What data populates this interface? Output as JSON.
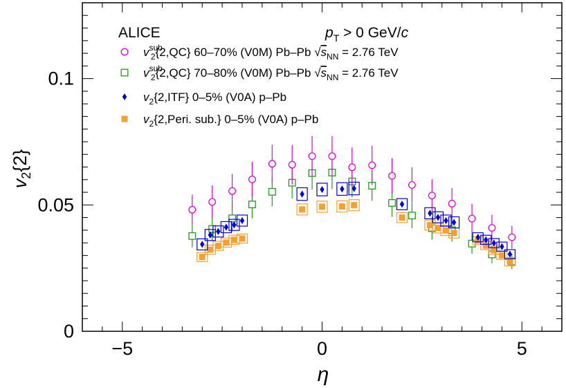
{
  "chart_data": {
    "type": "scatter",
    "title": "",
    "experiment_label": "ALICE",
    "kinematic_label": {
      "main": "p",
      "sub": "T",
      "rest": " > 0 GeV/",
      "unit": "c"
    },
    "xlabel": "η",
    "ylabel": {
      "main": "v",
      "sub": "2",
      "rest": "{2}"
    },
    "xlim": [
      -6,
      6
    ],
    "ylim": [
      0,
      0.13
    ],
    "x_ticks": [
      {
        "v": -5,
        "label": "−5"
      },
      {
        "v": 0,
        "label": "0"
      },
      {
        "v": 5,
        "label": "5"
      }
    ],
    "y_ticks": [
      {
        "v": 0,
        "label": "0"
      },
      {
        "v": 0.05,
        "label": "0.05"
      },
      {
        "v": 0.1,
        "label": "0.1"
      }
    ],
    "grid": false,
    "legend_position": "top-left",
    "series": [
      {
        "name": "v2sub{2,QC} 60–70% (V0M) Pb–Pb √sNN = 2.76 TeV",
        "legend_parts": {
          "v": "v",
          "sub": "2",
          "sup": "sub",
          "text": "{2,QC} 60–70% (V0M) Pb–Pb ",
          "sqrt_s": "s",
          "sqrt_sub": "NN",
          "energy": " = 2.76 TeV"
        },
        "marker": "open-circle",
        "color": "#e100e6",
        "x": [
          -3.25,
          -2.75,
          -2.25,
          -1.75,
          -1.25,
          -0.75,
          -0.25,
          0.25,
          0.75,
          1.25,
          1.75,
          2.25,
          2.75,
          3.25,
          3.75,
          4.25,
          4.75
        ],
        "y": [
          0.0481,
          0.0512,
          0.0555,
          0.0601,
          0.0663,
          0.0659,
          0.0693,
          0.0693,
          0.0649,
          0.0657,
          0.0615,
          0.0579,
          0.0537,
          0.0505,
          0.0446,
          0.0409,
          0.0372
        ],
        "err": [
          0.006,
          0.0065,
          0.0068,
          0.007,
          0.0075,
          0.0078,
          0.008,
          0.008,
          0.0078,
          0.0078,
          0.007,
          0.007,
          0.0065,
          0.0062,
          0.0058,
          0.0052,
          0.0045
        ]
      },
      {
        "name": "v2sub{2,QC} 70–80% (V0M) Pb–Pb √sNN = 2.76 TeV",
        "legend_parts": {
          "v": "v",
          "sub": "2",
          "sup": "sub",
          "text": "{2,QC} 70–80% (V0M) Pb–Pb ",
          "sqrt_s": "s",
          "sqrt_sub": "NN",
          "energy": " = 2.76 TeV"
        },
        "marker": "open-square",
        "color": "#1f9a1f",
        "x": [
          -3.25,
          -2.75,
          -2.25,
          -1.75,
          -1.25,
          -0.75,
          -0.25,
          0.25,
          0.75,
          1.25,
          1.75,
          2.25,
          2.75,
          3.25,
          3.75,
          4.25,
          4.75
        ],
        "y": [
          0.0377,
          0.0405,
          0.0447,
          0.0502,
          0.0552,
          0.0588,
          0.0626,
          0.0628,
          0.0593,
          0.0576,
          0.0508,
          0.0458,
          0.0408,
          0.04,
          0.0347,
          0.0304,
          0.0276
        ],
        "err": [
          0.0045,
          0.0048,
          0.0052,
          0.0055,
          0.0058,
          0.0062,
          0.0065,
          0.0065,
          0.0062,
          0.006,
          0.0055,
          0.005,
          0.0045,
          0.0045,
          0.004,
          0.0035,
          0.003
        ]
      },
      {
        "name": "v2{2,ITF} 0–5% (V0A) p–Pb",
        "legend_parts": {
          "v": "v",
          "sub": "2",
          "text": "{2,ITF} 0–5% (V0A) p–Pb"
        },
        "marker": "filled-diamond",
        "color": "#0000dc",
        "x": [
          -3.0,
          -2.8,
          -2.6,
          -2.4,
          -2.2,
          -2.0,
          -0.5,
          0.0,
          0.5,
          0.8,
          2.0,
          2.7,
          2.9,
          3.1,
          3.3,
          3.9,
          4.1,
          4.3,
          4.5,
          4.7
        ],
        "y": [
          0.0344,
          0.0381,
          0.0395,
          0.0412,
          0.0421,
          0.0438,
          0.0543,
          0.0561,
          0.0563,
          0.0565,
          0.0503,
          0.0467,
          0.0451,
          0.0438,
          0.0431,
          0.0372,
          0.0362,
          0.0349,
          0.0335,
          0.0305
        ],
        "err": [
          0.0012,
          0.0012,
          0.0012,
          0.0012,
          0.0012,
          0.0012,
          0.0012,
          0.0012,
          0.0012,
          0.0012,
          0.0012,
          0.0012,
          0.0012,
          0.0012,
          0.0012,
          0.0012,
          0.0012,
          0.0012,
          0.0012,
          0.0012
        ],
        "syst": [
          0.0022,
          0.0022,
          0.0022,
          0.0022,
          0.0022,
          0.0022,
          0.0025,
          0.0025,
          0.0025,
          0.0025,
          0.0022,
          0.0022,
          0.0022,
          0.0022,
          0.0022,
          0.0018,
          0.0018,
          0.0018,
          0.0018,
          0.0018
        ]
      },
      {
        "name": "v2{2,Peri. sub.} 0–5% (V0A) p–Pb",
        "legend_parts": {
          "v": "v",
          "sub": "2",
          "text": "{2,Peri. sub.} 0–5% (V0A) p–Pb"
        },
        "marker": "filled-square",
        "color": "#f7a030",
        "x": [
          -3.0,
          -2.8,
          -2.6,
          -2.4,
          -2.2,
          -2.0,
          -0.5,
          0.0,
          0.5,
          0.8,
          2.0,
          2.7,
          2.9,
          3.1,
          3.3,
          3.9,
          4.1,
          4.3,
          4.5,
          4.7
        ],
        "y": [
          0.0294,
          0.0323,
          0.0338,
          0.0351,
          0.0362,
          0.0367,
          0.0482,
          0.0493,
          0.0494,
          0.0499,
          0.045,
          0.042,
          0.0409,
          0.0399,
          0.0389,
          0.0359,
          0.0339,
          0.0321,
          0.03,
          0.0275
        ],
        "err": [
          0.0008,
          0.0008,
          0.0008,
          0.0008,
          0.0008,
          0.0008,
          0.0008,
          0.0008,
          0.0008,
          0.0008,
          0.0008,
          0.0008,
          0.0008,
          0.0008,
          0.0008,
          0.0008,
          0.0008,
          0.0008,
          0.0008,
          0.0008
        ],
        "syst": [
          0.0018,
          0.0018,
          0.0018,
          0.0018,
          0.0018,
          0.0018,
          0.0022,
          0.0022,
          0.0022,
          0.0022,
          0.002,
          0.002,
          0.002,
          0.002,
          0.002,
          0.0016,
          0.0016,
          0.0016,
          0.0016,
          0.0016
        ]
      }
    ]
  }
}
